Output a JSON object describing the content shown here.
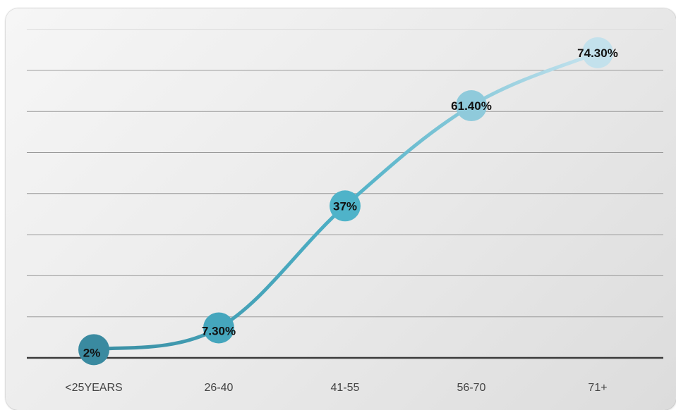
{
  "chart_data": {
    "type": "line",
    "categories": [
      "<25YEARS",
      "26-40",
      "41-55",
      "56-70",
      "71+"
    ],
    "series": [
      {
        "values": [
          2,
          7.3,
          37,
          61.4,
          74.3
        ],
        "labels": [
          "2%",
          "7.30%",
          "37%",
          "61.40%",
          "74.30%"
        ]
      }
    ],
    "ylim": [
      0,
      80
    ],
    "grid": true,
    "colors": {
      "line_start": "#3a8ea3",
      "line_mid": "#4db0c6",
      "line_end": "#c8e4ef",
      "gridline": "#9a9a9a",
      "baseline": "#3a3a3a"
    }
  }
}
